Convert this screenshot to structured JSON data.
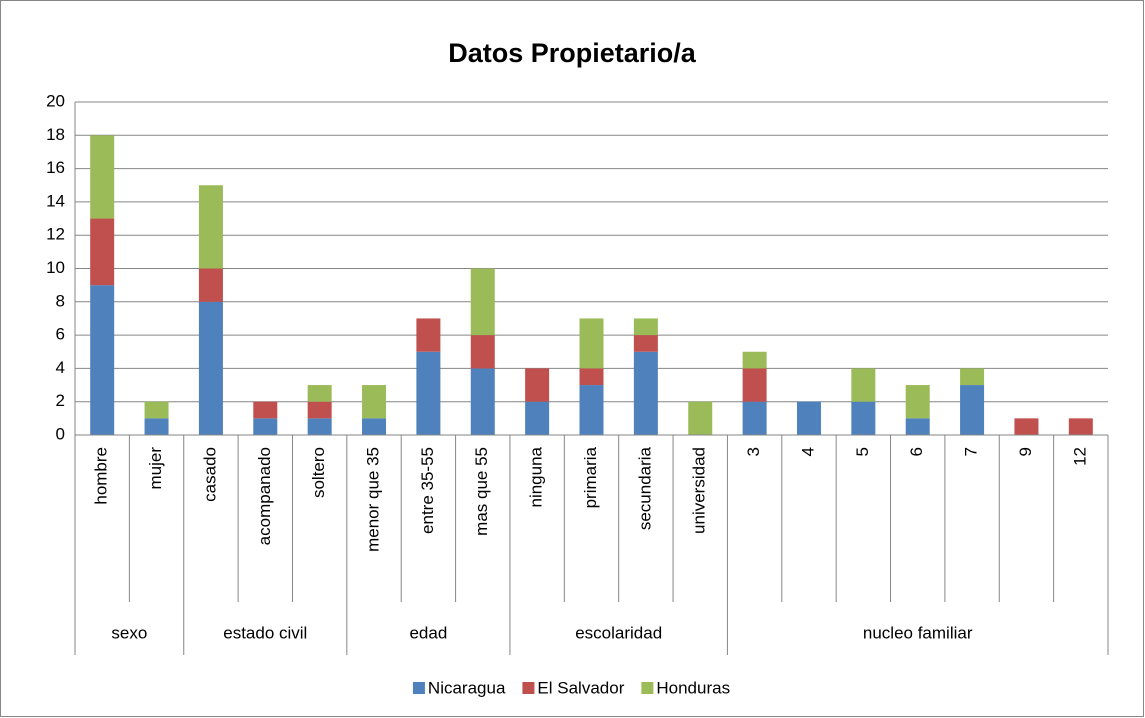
{
  "chart_data": {
    "type": "stacked_bar",
    "title": "Datos Propietario/a",
    "categories": [
      "hombre",
      "mujer",
      "casado",
      "acompanado",
      "soltero",
      "menor que 35",
      "entre 35-55",
      "mas que 55",
      "ninguna",
      "primaria",
      "secundaria",
      "universidad",
      "3",
      "4",
      "5",
      "6",
      "7",
      "9",
      "12"
    ],
    "groups": [
      {
        "name": "sexo",
        "size": 2
      },
      {
        "name": "estado civil",
        "size": 3
      },
      {
        "name": "edad",
        "size": 3
      },
      {
        "name": "escolaridad",
        "size": 4
      },
      {
        "name": "nucleo familiar",
        "size": 7
      }
    ],
    "series": [
      {
        "name": "Nicaragua",
        "color": "#4f81bd",
        "values": [
          9,
          1,
          8,
          1,
          1,
          1,
          5,
          4,
          2,
          3,
          5,
          0,
          2,
          2,
          2,
          1,
          3,
          0,
          0
        ]
      },
      {
        "name": "El Salvador",
        "color": "#c0504d",
        "values": [
          4,
          0,
          2,
          1,
          1,
          0,
          2,
          2,
          2,
          1,
          1,
          0,
          2,
          0,
          0,
          0,
          0,
          1,
          1
        ]
      },
      {
        "name": "Honduras",
        "color": "#9bbb59",
        "values": [
          5,
          1,
          5,
          0,
          1,
          2,
          0,
          4,
          0,
          3,
          1,
          2,
          1,
          0,
          2,
          2,
          1,
          0,
          0
        ]
      }
    ],
    "ylim": [
      0,
      20
    ],
    "yticks": [
      0,
      2,
      4,
      6,
      8,
      10,
      12,
      14,
      16,
      18,
      20
    ],
    "grid": true,
    "legend": "bottom"
  }
}
